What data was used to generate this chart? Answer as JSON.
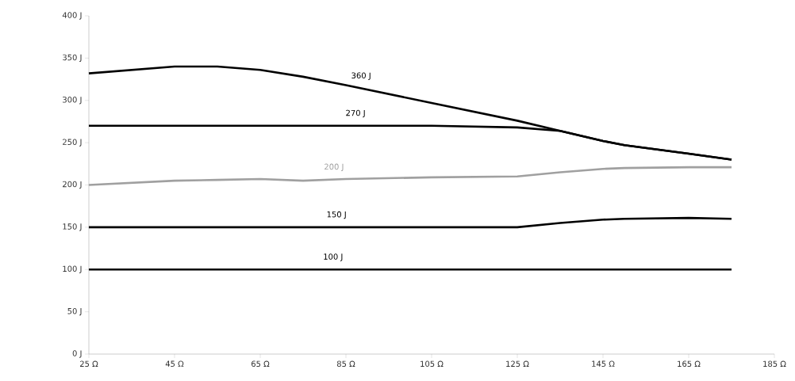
{
  "chart_data": {
    "type": "line",
    "x": [
      25,
      45,
      55,
      65,
      75,
      85,
      105,
      125,
      135,
      145,
      150,
      165,
      175
    ],
    "series": [
      {
        "name": "360 J",
        "color": "#000000",
        "values": [
          332,
          340,
          340,
          336,
          328,
          318,
          297,
          276,
          264,
          252,
          247,
          237,
          230
        ]
      },
      {
        "name": "270 J",
        "color": "#000000",
        "values": [
          270,
          270,
          270,
          270,
          270,
          270,
          270,
          268,
          264,
          252,
          247,
          237,
          230
        ]
      },
      {
        "name": "200 J",
        "color": "#a0a0a0",
        "values": [
          200,
          205,
          206,
          207,
          205,
          207,
          209,
          210,
          215,
          219,
          220,
          221,
          221
        ]
      },
      {
        "name": "150 J",
        "color": "#000000",
        "values": [
          150,
          150,
          150,
          150,
          150,
          150,
          150,
          150,
          155,
          159,
          160,
          161,
          160
        ]
      },
      {
        "name": "100 J",
        "color": "#000000",
        "values": [
          100,
          100,
          100,
          100,
          100,
          100,
          100,
          100,
          100,
          100,
          100,
          100,
          100
        ]
      }
    ],
    "xlim": [
      25,
      185
    ],
    "xticks": [
      {
        "value": 25,
        "label": "25 Ω"
      },
      {
        "value": 45,
        "label": "45 Ω"
      },
      {
        "value": 65,
        "label": "65 Ω"
      },
      {
        "value": 85,
        "label": "85 Ω"
      },
      {
        "value": 105,
        "label": "105 Ω"
      },
      {
        "value": 125,
        "label": "125 Ω"
      },
      {
        "value": 145,
        "label": "145 Ω"
      },
      {
        "value": 165,
        "label": "165 Ω"
      },
      {
        "value": 185,
        "label": "185 Ω"
      }
    ],
    "ylim": [
      0,
      400
    ],
    "yticks": [
      {
        "value": 0,
        "label": "0 J"
      },
      {
        "value": 50,
        "label": "50 J"
      },
      {
        "value": 100,
        "label": "100 J"
      },
      {
        "value": 150,
        "label": "150 J"
      },
      {
        "value": 200,
        "label": "200 J"
      },
      {
        "value": 250,
        "label": "250 J"
      },
      {
        "value": 300,
        "label": "300 J"
      },
      {
        "value": 350,
        "label": "350 J"
      },
      {
        "value": 400,
        "label": "400 J"
      }
    ],
    "grid": false,
    "marker": "none",
    "line_style": "solid"
  }
}
